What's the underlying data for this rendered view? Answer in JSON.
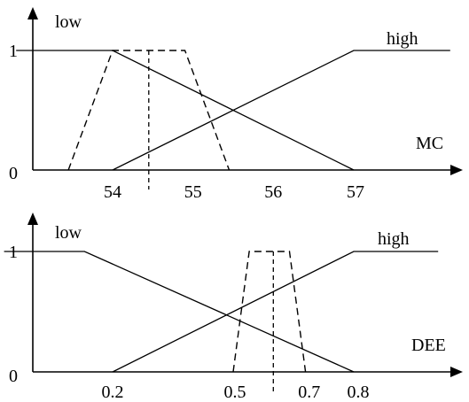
{
  "panels": [
    {
      "id": "mc",
      "variable_label": "MC",
      "y_ticks": [
        "0",
        "1"
      ],
      "x_ticks": [
        {
          "label": "54",
          "value": 54
        },
        {
          "label": "55",
          "value": 55
        },
        {
          "label": "56",
          "value": 56
        },
        {
          "label": "57",
          "value": 57
        }
      ],
      "sets": [
        {
          "label": "low",
          "points": [
            [
              52.8,
              1
            ],
            [
              54.0,
              1
            ],
            [
              57.0,
              0
            ]
          ]
        },
        {
          "label": "high",
          "points": [
            [
              54.0,
              0
            ],
            [
              57.0,
              1
            ],
            [
              58.2,
              1
            ]
          ]
        }
      ],
      "input_set": {
        "points": [
          [
            53.45,
            0
          ],
          [
            54.0,
            1
          ],
          [
            54.9,
            1
          ],
          [
            55.45,
            0
          ]
        ]
      },
      "crisp_value": 54.45
    },
    {
      "id": "dee",
      "variable_label": "DEE",
      "y_ticks": [
        "0",
        "1"
      ],
      "x_ticks": [
        {
          "label": "0.2",
          "value": 0.2
        },
        {
          "label": "0.5",
          "value": 0.5
        },
        {
          "label": "0.7",
          "value": 0.7
        },
        {
          "label": "0.8",
          "value": 0.8
        }
      ],
      "sets": [
        {
          "label": "low",
          "points": [
            [
              -0.07,
              1
            ],
            [
              0.13,
              1
            ],
            [
              0.8,
              0
            ]
          ]
        },
        {
          "label": "high",
          "points": [
            [
              0.2,
              0
            ],
            [
              0.8,
              1
            ],
            [
              1.01,
              1
            ]
          ]
        }
      ],
      "input_set": {
        "points": [
          [
            0.5,
            0
          ],
          [
            0.54,
            1
          ],
          [
            0.64,
            1
          ],
          [
            0.68,
            0
          ]
        ]
      },
      "crisp_value": 0.6
    }
  ]
}
